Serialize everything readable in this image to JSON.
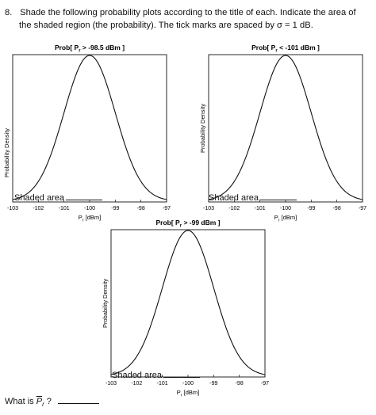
{
  "question": {
    "number": "8.",
    "line1": "Shade the following probability plots according to the title of each. Indicate the area of",
    "line2": "the shaded region (the probability). The tick marks are spaced by σ = 1 dB."
  },
  "chart_data": [
    {
      "type": "line",
      "title": "Prob[ P  > -98.5 dBm ]",
      "title_prefix": "Prob[ P",
      "title_sub": "r",
      "title_suffix": " > -98.5 dBm ]",
      "xlabel": "P [dBm]",
      "xlabel_main": "P",
      "xlabel_sub": "r",
      "xlabel_unit": " [dBm]",
      "ylabel": "Probability Density",
      "xlim": [
        -103,
        -97
      ],
      "x_ticks": [
        "-103",
        "-102",
        "-101",
        "-100",
        "-99",
        "-98",
        "-97"
      ],
      "curve": {
        "mean": -100,
        "sigma": 1
      },
      "shaded_label": "Shaded area"
    },
    {
      "type": "line",
      "title": "Prob[ P  < -101 dBm ]",
      "title_prefix": "Prob[ P",
      "title_sub": "r",
      "title_suffix": " < -101 dBm ]",
      "xlabel": "P [dBm]",
      "xlabel_main": "P",
      "xlabel_sub": "r",
      "xlabel_unit": " [dBm]",
      "ylabel": "Probability Density",
      "xlim": [
        -103,
        -97
      ],
      "x_ticks": [
        "-103",
        "-102",
        "-101",
        "-100",
        "-99",
        "-98",
        "-97"
      ],
      "curve": {
        "mean": -100,
        "sigma": 1
      },
      "shaded_label": "Shaded area"
    },
    {
      "type": "line",
      "title": "Prob[ P  > -99 dBm ]",
      "title_prefix": "Prob[ P",
      "title_sub": "r",
      "title_suffix": " > -99 dBm ]",
      "xlabel": "P [dBm]",
      "xlabel_main": "P",
      "xlabel_sub": "r",
      "xlabel_unit": " [dBm]",
      "ylabel": "Probability Density",
      "xlim": [
        -103,
        -97
      ],
      "x_ticks": [
        "-103",
        "-102",
        "-101",
        "-100",
        "-99",
        "-98",
        "-97"
      ],
      "curve": {
        "mean": -100,
        "sigma": 1
      },
      "shaded_label": "Shaded area"
    }
  ],
  "what_is": {
    "prefix": "What is ",
    "symbol": "P",
    "symbol_sub": "r",
    "suffix": " ?"
  }
}
